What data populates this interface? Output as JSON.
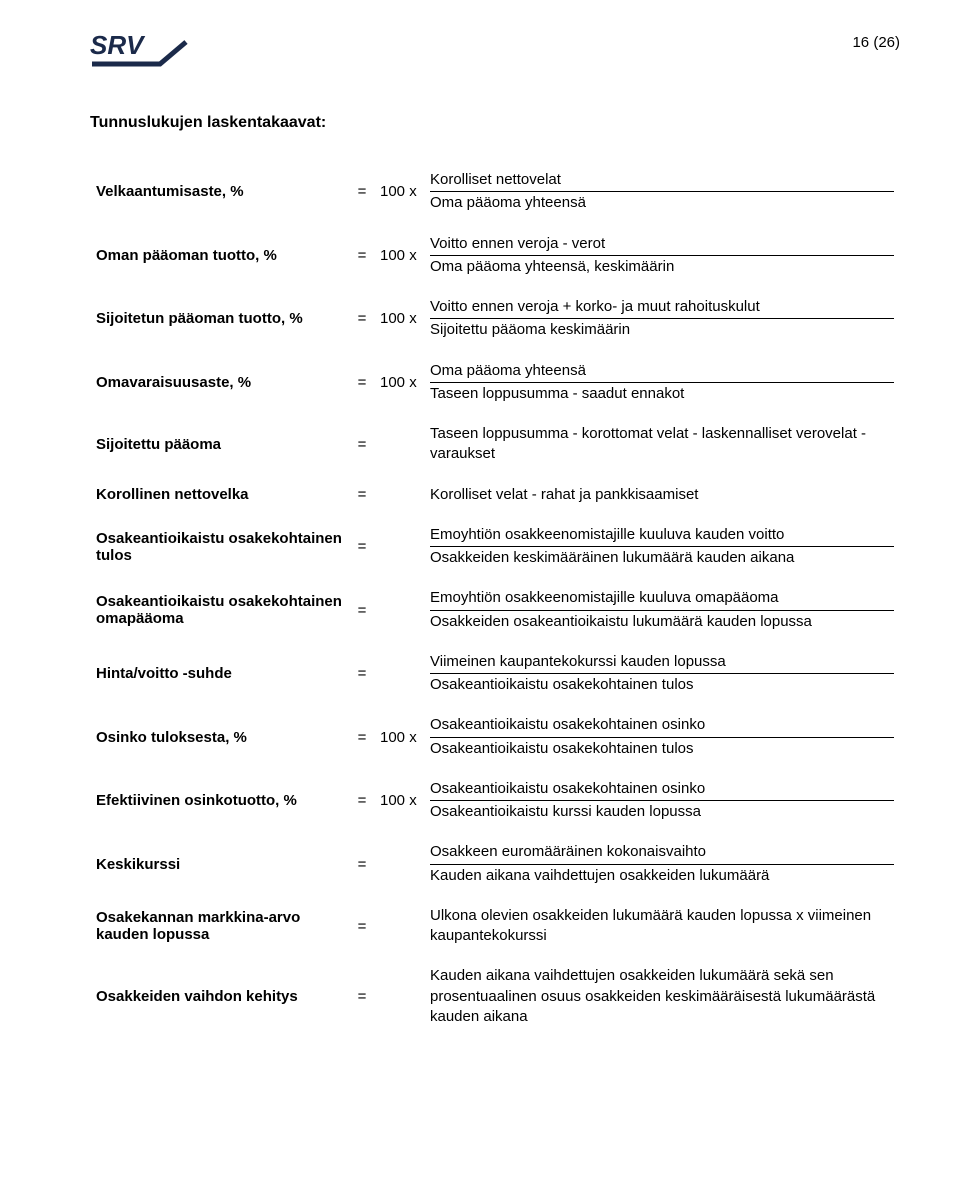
{
  "page_number": "16 (26)",
  "section_title": "Tunnuslukujen laskentakaavat:",
  "colors": {
    "text": "#000000",
    "background": "#ffffff",
    "logo_dark": "#1b2a4a",
    "rule": "#000000"
  },
  "font": {
    "family": "Arial",
    "body_size_pt": 11,
    "title_size_pt": 12
  },
  "rows": [
    {
      "label": "Velkaantumisaste, %",
      "eq": "=",
      "mult": "100 x",
      "num": "Korolliset nettovelat",
      "den": "Oma pääoma yhteensä"
    },
    {
      "label": "Oman pääoman tuotto, %",
      "eq": "=",
      "mult": "100 x",
      "num": "Voitto ennen veroja - verot",
      "den": "Oma pääoma yhteensä, keskimäärin"
    },
    {
      "label": "Sijoitetun pääoman tuotto, %",
      "eq": "=",
      "mult": "100 x",
      "num": "Voitto ennen veroja + korko- ja muut rahoituskulut",
      "den": "Sijoitettu pääoma keskimäärin"
    },
    {
      "label": "Omavaraisuusaste, %",
      "eq": "=",
      "mult": "100 x",
      "num": "Oma pääoma yhteensä",
      "den": "Taseen loppusumma - saadut ennakot"
    },
    {
      "label": "Sijoitettu pääoma",
      "eq": "=",
      "mult": "",
      "plain": "Taseen loppusumma - korottomat velat - laskennalliset verovelat - varaukset"
    },
    {
      "label": "Korollinen nettovelka",
      "eq": "=",
      "mult": "",
      "plain": "Korolliset velat - rahat ja pankkisaamiset"
    },
    {
      "label": "Osakeantioikaistu osakekohtainen tulos",
      "eq": "=",
      "mult": "",
      "num": "Emoyhtiön osakkeenomistajille kuuluva kauden voitto",
      "den": "Osakkeiden keskimääräinen lukumäärä kauden aikana"
    },
    {
      "label": "Osakeantioikaistu osakekohtainen omapääoma",
      "eq": "=",
      "mult": "",
      "num": "Emoyhtiön osakkeenomistajille kuuluva omapääoma",
      "den": "Osakkeiden osakeantioikaistu lukumäärä kauden lopussa"
    },
    {
      "label": "Hinta/voitto -suhde",
      "eq": "=",
      "mult": "",
      "num": "Viimeinen kaupantekokurssi kauden lopussa",
      "den": "Osakeantioikaistu osakekohtainen tulos"
    },
    {
      "label": "Osinko tuloksesta, %",
      "eq": "=",
      "mult": "100 x",
      "num": "Osakeantioikaistu osakekohtainen osinko",
      "den": "Osakeantioikaistu osakekohtainen tulos"
    },
    {
      "label": "Efektiivinen osinkotuotto, %",
      "eq": "=",
      "mult": "100 x",
      "num": "Osakeantioikaistu osakekohtainen osinko",
      "den": "Osakeantioikaistu kurssi kauden lopussa"
    },
    {
      "label": "Keskikurssi",
      "eq": "=",
      "mult": "",
      "num": "Osakkeen euromääräinen kokonaisvaihto",
      "den": "Kauden aikana vaihdettujen osakkeiden lukumäärä"
    },
    {
      "label": "Osakekannan markkina-arvo kauden lopussa",
      "eq": "=",
      "mult": "",
      "plain": "Ulkona olevien osakkeiden lukumäärä kauden lopussa x viimeinen kaupantekokurssi"
    },
    {
      "label": "Osakkeiden vaihdon kehitys",
      "eq": "=",
      "mult": "",
      "plain": "Kauden aikana vaihdettujen osakkeiden lukumäärä sekä sen prosentuaalinen osuus osakkeiden keskimääräisestä lukumäärästä kauden aikana"
    }
  ]
}
